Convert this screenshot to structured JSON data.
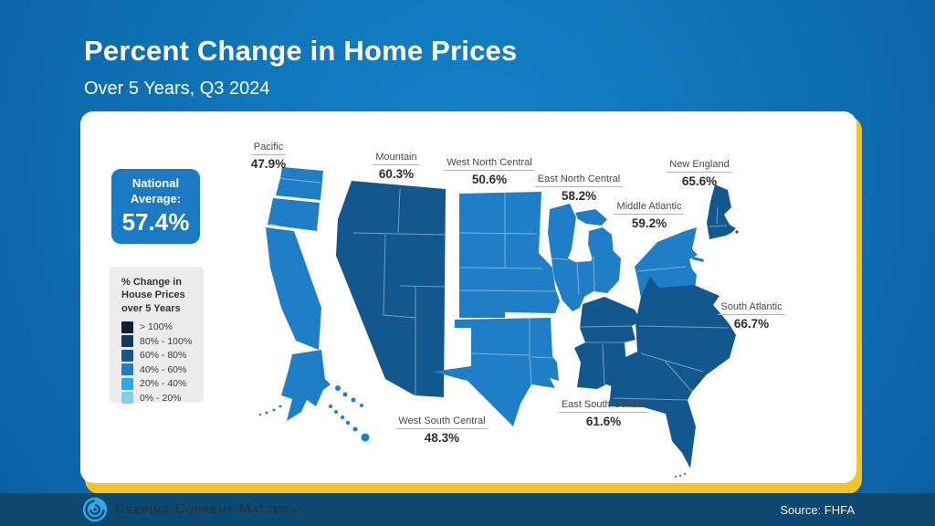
{
  "slide": {
    "title": "Percent Change in Home Prices",
    "subtitle": "Over 5 Years, Q3 2024",
    "brand": "Keeping Current Matters",
    "source": "Source: FHFA"
  },
  "national_average": {
    "label": "National Average:",
    "value": "57.4%"
  },
  "legend": {
    "title": "% Change in House Prices over 5 Years",
    "bins": [
      {
        "label": "> 100%",
        "color": "#0d2130"
      },
      {
        "label": "80% - 100%",
        "color": "#0e3b5e"
      },
      {
        "label": "60% - 80%",
        "color": "#12588f"
      },
      {
        "label": "40% - 60%",
        "color": "#1f7ec5"
      },
      {
        "label": "20% - 40%",
        "color": "#26a9ef"
      },
      {
        "label": "0% - 20%",
        "color": "#7fcdf1"
      }
    ]
  },
  "colors": {
    "background_blue": "#1074b8",
    "card_gold": "#f3c32a",
    "footer_navy": "#0d4871",
    "national_box_blue": "#1b7ac1"
  },
  "chart_data": {
    "type": "choropleth-map",
    "title": "Percent Change in Home Prices, Over 5 Years, Q3 2024",
    "unit": "percent",
    "national_average_pct": 57.4,
    "legend_bins": [
      "> 100%",
      "80% - 100%",
      "60% - 80%",
      "40% - 60%",
      "20% - 40%",
      "0% - 20%"
    ],
    "regions": [
      {
        "id": "pacific",
        "name": "Pacific",
        "value": "47.9%",
        "pct": 47.9,
        "bin": "40% - 60%"
      },
      {
        "id": "mountain",
        "name": "Mountain",
        "value": "60.3%",
        "pct": 60.3,
        "bin": "60% - 80%"
      },
      {
        "id": "west-north-central",
        "name": "West North Central",
        "value": "50.6%",
        "pct": 50.6,
        "bin": "40% - 60%"
      },
      {
        "id": "east-north-central",
        "name": "East North Central",
        "value": "58.2%",
        "pct": 58.2,
        "bin": "40% - 60%"
      },
      {
        "id": "middle-atlantic",
        "name": "Middle Atlantic",
        "value": "59.2%",
        "pct": 59.2,
        "bin": "40% - 60%"
      },
      {
        "id": "new-england",
        "name": "New England",
        "value": "65.6%",
        "pct": 65.6,
        "bin": "60% - 80%"
      },
      {
        "id": "south-atlantic",
        "name": "South Atlantic",
        "value": "66.7%",
        "pct": 66.7,
        "bin": "60% - 80%"
      },
      {
        "id": "east-south-central",
        "name": "East South Central",
        "value": "61.6%",
        "pct": 61.6,
        "bin": "60% - 80%"
      },
      {
        "id": "west-south-central",
        "name": "West South Central",
        "value": "48.3%",
        "pct": 48.3,
        "bin": "40% - 60%"
      }
    ]
  }
}
